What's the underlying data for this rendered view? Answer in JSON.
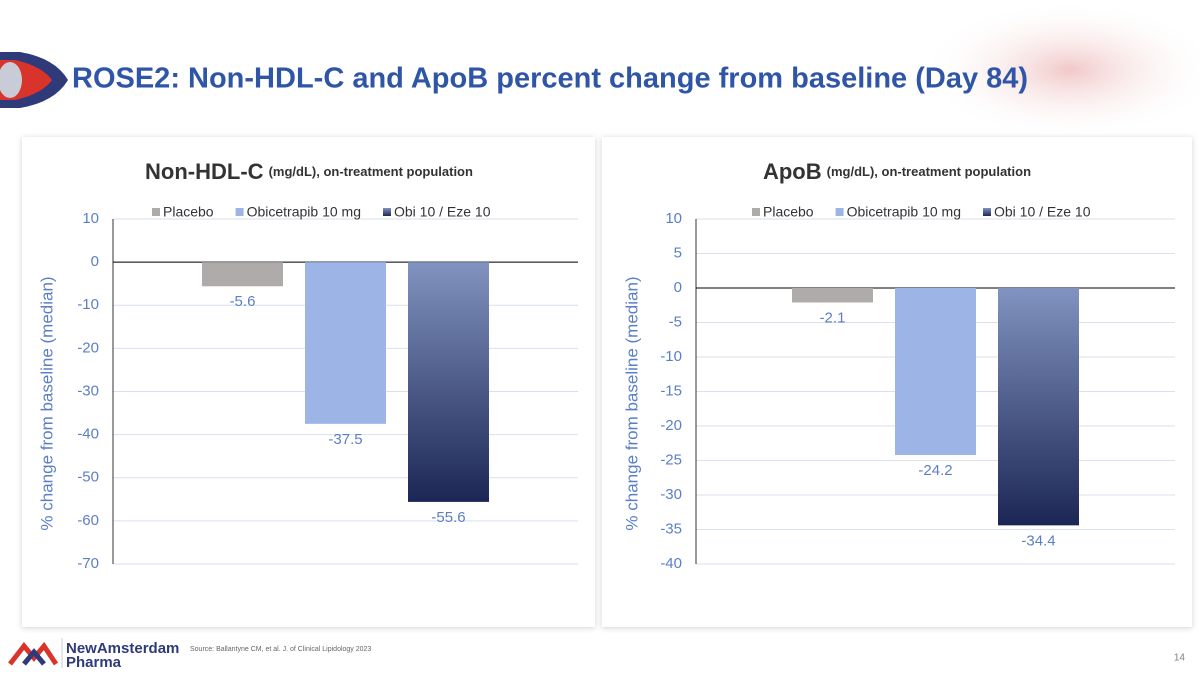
{
  "title": "ROSE2: Non-HDL-C and ApoB percent change from baseline (Day 84)",
  "source": "Source: Ballantyne CM, et al. J. of Clinical Lipidology 2023",
  "page_number": "14",
  "logo": {
    "line1": "NewAmsterdam",
    "line2": "Pharma"
  },
  "chart_data": [
    {
      "type": "bar",
      "title": "Non-HDL-C",
      "title_note": "(mg/dL), on-treatment population",
      "y_label": "% change from baseline (median)",
      "categories": [
        null
      ],
      "series": [
        {
          "name": "Placebo",
          "color": "#afabab",
          "values": [
            -5.6
          ]
        },
        {
          "name": "Obicetrapib 10 mg",
          "color": "#9db5e6",
          "values": [
            -37.5
          ]
        },
        {
          "name": "Obi 10 / Eze 10",
          "color": [
            "#8193c0",
            "#1c2654"
          ],
          "values": [
            -55.6
          ]
        }
      ],
      "ylim": [
        -70,
        10
      ],
      "yticks": [
        -70,
        -60,
        -50,
        -40,
        -30,
        -20,
        -10,
        0,
        10
      ],
      "grid": true,
      "legend": "top"
    },
    {
      "type": "bar",
      "title": "ApoB",
      "title_note": "(mg/dL), on-treatment population",
      "y_label": "% change from baseline (median)",
      "categories": [
        null
      ],
      "series": [
        {
          "name": "Placebo",
          "color": "#afabab",
          "values": [
            -2.1
          ]
        },
        {
          "name": "Obicetrapib 10 mg",
          "color": "#9db5e6",
          "values": [
            -24.2
          ]
        },
        {
          "name": "Obi 10 / Eze 10",
          "color": [
            "#8193c0",
            "#1c2654"
          ],
          "values": [
            -34.4
          ]
        }
      ],
      "ylim": [
        -40,
        10
      ],
      "yticks": [
        -40,
        -35,
        -30,
        -25,
        -20,
        -15,
        -10,
        -5,
        0,
        5,
        10
      ],
      "grid": true,
      "legend": "top"
    }
  ]
}
